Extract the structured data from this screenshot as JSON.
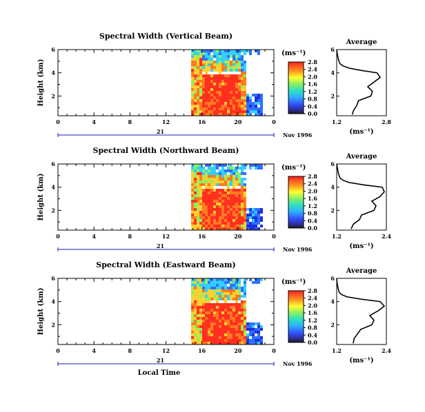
{
  "chart_data": [
    {
      "type": "heatmap",
      "title": "Spectral Width (Vertical Beam)",
      "ylabel": "Height (km)",
      "xticks": [
        "0",
        "4",
        "8",
        "12",
        "16",
        "20",
        "0"
      ],
      "yticks": [
        "2",
        "4",
        "6"
      ],
      "ylim": [
        0.3,
        6.0
      ],
      "day_label": "21",
      "date_label": "Nov 1996",
      "colorbar": {
        "unit": "(ms⁻¹)",
        "ticks": [
          "0.0",
          "0.4",
          "0.8",
          "1.2",
          "1.6",
          "2.0",
          "2.4",
          "2.8"
        ]
      },
      "profile": {
        "title": "Average",
        "xlabel": "(ms⁻¹)",
        "xticks": [
          "1.2",
          "2.8"
        ],
        "xlim": [
          1.2,
          2.8
        ],
        "yticks": [
          "2",
          "4",
          "6"
        ],
        "ylim": [
          0.3,
          6.0
        ],
        "heights": [
          0.4,
          0.8,
          1.2,
          1.6,
          2.0,
          2.4,
          2.8,
          3.2,
          3.6,
          4.0,
          4.2,
          4.4,
          4.6,
          4.8,
          5.2,
          5.6,
          6.0
        ],
        "values": [
          1.7,
          1.75,
          1.85,
          1.9,
          2.3,
          2.35,
          2.2,
          2.4,
          2.6,
          2.5,
          2.0,
          1.6,
          1.4,
          1.3,
          1.25,
          1.22,
          1.2
        ]
      }
    },
    {
      "type": "heatmap",
      "title": "Spectral Width (Northward Beam)",
      "ylabel": "Height (km)",
      "xticks": [
        "0",
        "4",
        "8",
        "12",
        "16",
        "20",
        "0"
      ],
      "yticks": [
        "2",
        "4",
        "6"
      ],
      "ylim": [
        0.3,
        6.0
      ],
      "day_label": "21",
      "date_label": "Nov 1996",
      "colorbar": {
        "unit": "(ms⁻¹)",
        "ticks": [
          "0.0",
          "0.4",
          "0.8",
          "1.2",
          "1.6",
          "2.0",
          "2.4",
          "2.8"
        ]
      },
      "profile": {
        "title": "Average",
        "xlabel": "(ms⁻¹)",
        "xticks": [
          "1.2",
          "2.4"
        ],
        "xlim": [
          1.2,
          2.4
        ],
        "yticks": [
          "2",
          "4",
          "6"
        ],
        "ylim": [
          0.3,
          6.0
        ],
        "heights": [
          0.4,
          0.8,
          1.2,
          1.6,
          2.0,
          2.4,
          2.8,
          3.2,
          3.6,
          4.0,
          4.2,
          4.4,
          4.6,
          4.8,
          5.2,
          5.6,
          6.0
        ],
        "values": [
          1.55,
          1.6,
          1.75,
          1.8,
          2.1,
          2.15,
          2.05,
          2.25,
          2.35,
          2.3,
          1.85,
          1.5,
          1.35,
          1.28,
          1.24,
          1.22,
          1.2
        ]
      }
    },
    {
      "type": "heatmap",
      "title": "Spectral Width (Eastward Beam)",
      "ylabel": "Height (km)",
      "xlabel": "Local Time",
      "xticks": [
        "0",
        "4",
        "8",
        "12",
        "16",
        "20",
        "0"
      ],
      "yticks": [
        "2",
        "4",
        "6"
      ],
      "ylim": [
        0.3,
        6.0
      ],
      "day_label": "21",
      "date_label": "Nov 1996",
      "colorbar": {
        "unit": "(ms⁻¹)",
        "ticks": [
          "0.0",
          "0.4",
          "0.8",
          "1.2",
          "1.6",
          "2.0",
          "2.4",
          "2.8"
        ]
      },
      "profile": {
        "title": "Average",
        "xlabel": "(ms⁻¹)",
        "xticks": [
          "1.2",
          "2.4"
        ],
        "xlim": [
          1.2,
          2.4
        ],
        "yticks": [
          "2",
          "4",
          "6"
        ],
        "ylim": [
          0.3,
          6.0
        ],
        "heights": [
          0.4,
          0.8,
          1.2,
          1.6,
          2.0,
          2.4,
          2.8,
          3.2,
          3.6,
          4.0,
          4.2,
          4.4,
          4.6,
          4.8,
          5.2,
          5.6,
          6.0
        ],
        "values": [
          1.6,
          1.62,
          1.7,
          1.78,
          2.05,
          2.1,
          2.0,
          2.2,
          2.35,
          2.25,
          1.8,
          1.45,
          1.32,
          1.26,
          1.23,
          1.21,
          1.2
        ]
      }
    }
  ]
}
